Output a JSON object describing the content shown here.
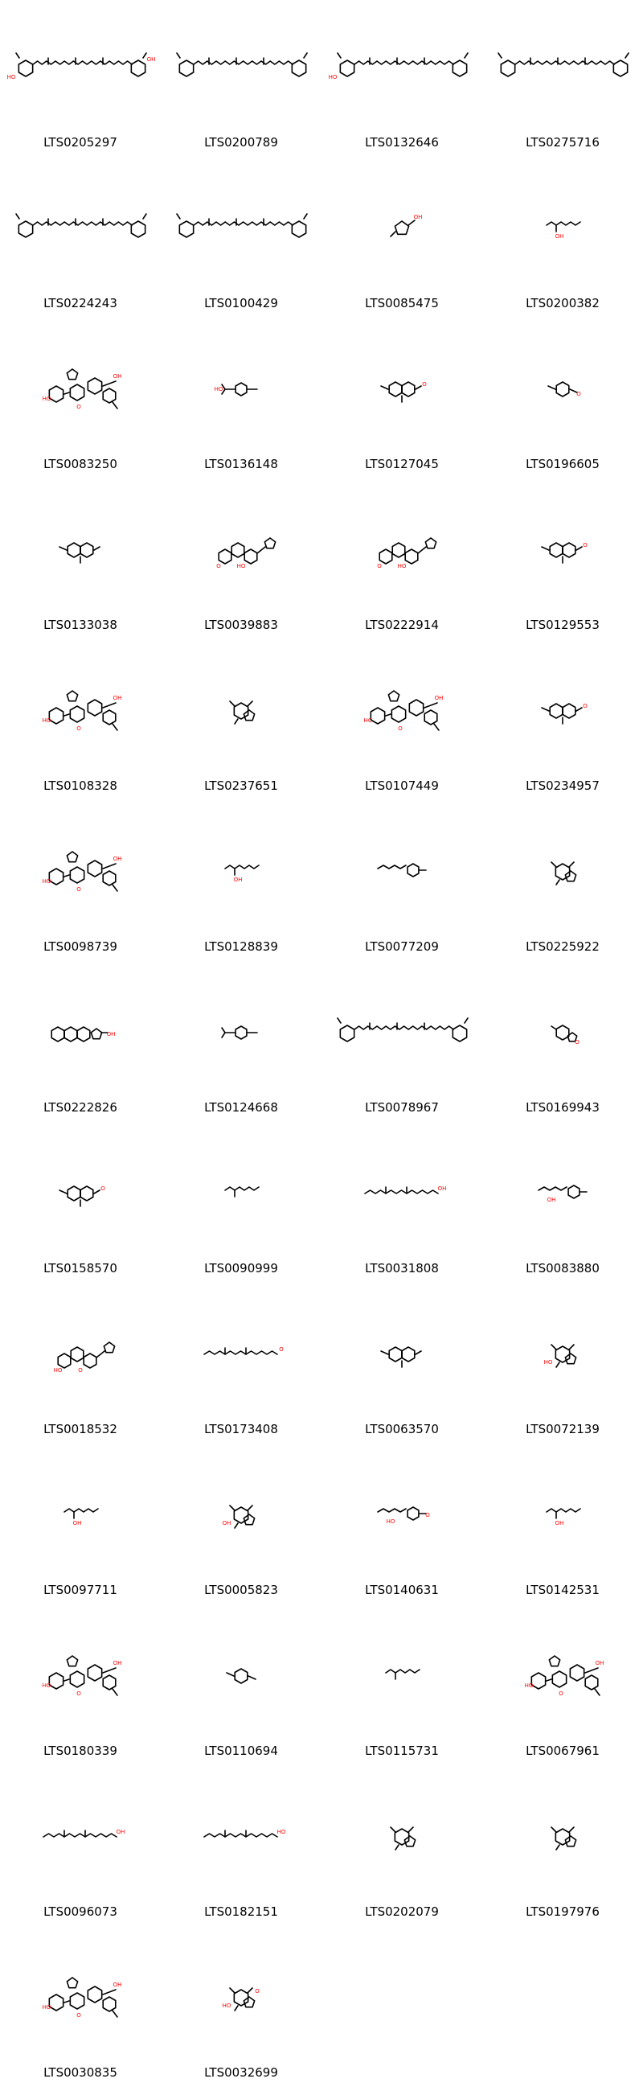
{
  "grid": {
    "columns": 4,
    "cell_size": 200,
    "bond_color": "#000000",
    "hetero_color": "#ff0000"
  },
  "molecules": [
    {
      "id": "LTS0205297",
      "shape": "carotene",
      "hetero": [
        "HO",
        "OH"
      ]
    },
    {
      "id": "LTS0200789",
      "shape": "carotene",
      "hetero": []
    },
    {
      "id": "LTS0132646",
      "shape": "carotene",
      "hetero": [
        "HO"
      ]
    },
    {
      "id": "LTS0275716",
      "shape": "carotene",
      "hetero": []
    },
    {
      "id": "LTS0224243",
      "shape": "carotene",
      "hetero": []
    },
    {
      "id": "LTS0100429",
      "shape": "carotene",
      "hetero": []
    },
    {
      "id": "LTS0085475",
      "shape": "small_ring",
      "hetero": [
        "OH"
      ]
    },
    {
      "id": "LTS0200382",
      "shape": "small_chain",
      "hetero": [
        "OH"
      ]
    },
    {
      "id": "LTS0083250",
      "shape": "glycoside",
      "hetero": [
        "HO",
        "O",
        "OH"
      ]
    },
    {
      "id": "LTS0136148",
      "shape": "para_ring",
      "hetero": [
        "HO"
      ]
    },
    {
      "id": "LTS0127045",
      "shape": "bicyclic",
      "hetero": [
        "O"
      ]
    },
    {
      "id": "LTS0196605",
      "shape": "monocyclic",
      "hetero": [
        "O"
      ]
    },
    {
      "id": "LTS0133038",
      "shape": "bicyclic",
      "hetero": []
    },
    {
      "id": "LTS0039883",
      "shape": "steroid_furan",
      "hetero": [
        "O",
        "HO"
      ]
    },
    {
      "id": "LTS0222914",
      "shape": "steroid_furan",
      "hetero": [
        "O",
        "HO"
      ]
    },
    {
      "id": "LTS0129553",
      "shape": "bicyclic",
      "hetero": [
        "O"
      ]
    },
    {
      "id": "LTS0108328",
      "shape": "glycoside",
      "hetero": [
        "HO",
        "O",
        "OH"
      ]
    },
    {
      "id": "LTS0237651",
      "shape": "cage",
      "hetero": []
    },
    {
      "id": "LTS0107449",
      "shape": "glycoside",
      "hetero": [
        "HO",
        "O",
        "OH"
      ]
    },
    {
      "id": "LTS0234957",
      "shape": "bicyclic",
      "hetero": [
        "O"
      ]
    },
    {
      "id": "LTS0098739",
      "shape": "glycoside",
      "hetero": [
        "HO",
        "O",
        "OH"
      ]
    },
    {
      "id": "LTS0128839",
      "shape": "small_chain",
      "hetero": [
        "OH"
      ]
    },
    {
      "id": "LTS0077209",
      "shape": "chain_ring",
      "hetero": []
    },
    {
      "id": "LTS0225922",
      "shape": "cage",
      "hetero": []
    },
    {
      "id": "LTS0222826",
      "shape": "steroid",
      "hetero": [
        "OH"
      ]
    },
    {
      "id": "LTS0124668",
      "shape": "para_ring",
      "hetero": []
    },
    {
      "id": "LTS0078967",
      "shape": "carotene",
      "hetero": []
    },
    {
      "id": "LTS0169943",
      "shape": "lactone",
      "hetero": [
        "O"
      ]
    },
    {
      "id": "LTS0158570",
      "shape": "bicyclic",
      "hetero": [
        "O"
      ]
    },
    {
      "id": "LTS0090999",
      "shape": "small_chain",
      "hetero": []
    },
    {
      "id": "LTS0031808",
      "shape": "long_chain",
      "hetero": [
        "OH"
      ]
    },
    {
      "id": "LTS0083880",
      "shape": "chain_ring",
      "hetero": [
        "OH"
      ]
    },
    {
      "id": "LTS0018532",
      "shape": "steroid_furan",
      "hetero": [
        "HO",
        "O"
      ]
    },
    {
      "id": "LTS0173408",
      "shape": "long_chain",
      "hetero": [
        "O"
      ]
    },
    {
      "id": "LTS0063570",
      "shape": "bicyclic",
      "hetero": []
    },
    {
      "id": "LTS0072139",
      "shape": "cage",
      "hetero": [
        "HO"
      ]
    },
    {
      "id": "LTS0097711",
      "shape": "small_chain",
      "hetero": [
        "OH"
      ]
    },
    {
      "id": "LTS0005823",
      "shape": "cage",
      "hetero": [
        "OH"
      ]
    },
    {
      "id": "LTS0140631",
      "shape": "chain_ring",
      "hetero": [
        "HO",
        "O"
      ]
    },
    {
      "id": "LTS0142531",
      "shape": "small_chain",
      "hetero": [
        "OH"
      ]
    },
    {
      "id": "LTS0180339",
      "shape": "glycoside",
      "hetero": [
        "HO",
        "O",
        "OH"
      ]
    },
    {
      "id": "LTS0110694",
      "shape": "monocyclic",
      "hetero": []
    },
    {
      "id": "LTS0115731",
      "shape": "small_chain",
      "hetero": []
    },
    {
      "id": "LTS0067961",
      "shape": "glycoside",
      "hetero": [
        "HO",
        "O",
        "OH"
      ]
    },
    {
      "id": "LTS0096073",
      "shape": "long_chain",
      "hetero": [
        "OH"
      ]
    },
    {
      "id": "LTS0182151",
      "shape": "long_chain",
      "hetero": [
        "HO"
      ]
    },
    {
      "id": "LTS0202079",
      "shape": "cage",
      "hetero": []
    },
    {
      "id": "LTS0197976",
      "shape": "cage",
      "hetero": []
    },
    {
      "id": "LTS0030835",
      "shape": "glycoside",
      "hetero": [
        "HO",
        "O",
        "OH"
      ]
    },
    {
      "id": "LTS0032699",
      "shape": "cage",
      "hetero": [
        "HO",
        "O"
      ]
    }
  ]
}
